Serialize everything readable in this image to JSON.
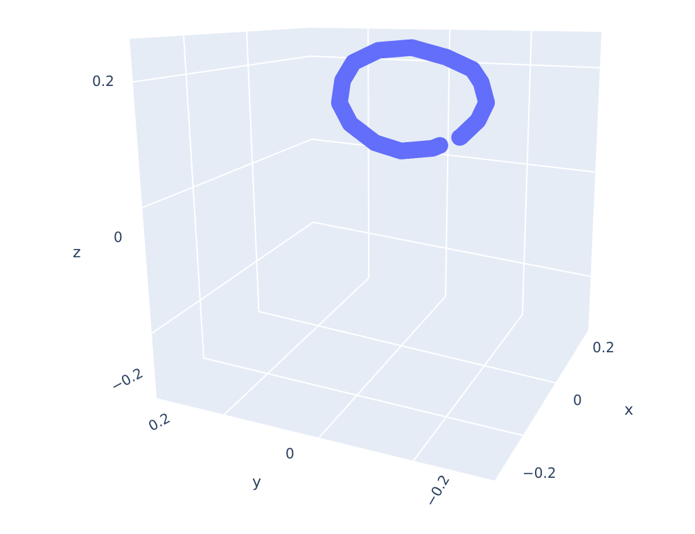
{
  "chart_data": {
    "type": "scatter3d",
    "xlabel": "x",
    "ylabel": "y",
    "zlabel": "z",
    "x_ticks": [
      {
        "label": "0.2"
      },
      {
        "label": "0"
      },
      {
        "label": "−0.2"
      }
    ],
    "y_ticks": [
      {
        "label": "0.2"
      },
      {
        "label": "0"
      },
      {
        "label": "−0.2"
      }
    ],
    "z_ticks": [
      {
        "label": "0.2"
      },
      {
        "label": "0"
      },
      {
        "label": "−0.2"
      }
    ],
    "series": [
      {
        "marker_color": "#636efa",
        "trajectory": [
          [
            0.0,
            -0.02,
            0.26
          ],
          [
            0.04,
            -0.06,
            0.25
          ],
          [
            0.07,
            -0.09,
            0.23
          ],
          [
            0.08,
            -0.1,
            0.2
          ],
          [
            0.09,
            -0.1,
            0.15
          ],
          [
            0.08,
            -0.09,
            0.1
          ],
          [
            0.06,
            -0.07,
            0.05
          ],
          [
            0.02,
            -0.05,
            0.01
          ],
          [
            -0.02,
            -0.02,
            -0.01
          ],
          [
            -0.05,
            0.01,
            0.0
          ],
          [
            -0.09,
            0.02,
            0.04
          ],
          [
            -0.11,
            0.02,
            0.09
          ],
          [
            -0.11,
            0.01,
            0.15
          ],
          [
            -0.09,
            0.01,
            0.2
          ],
          [
            -0.05,
            0.0,
            0.24
          ],
          [
            0.0,
            -0.02,
            0.26
          ]
        ]
      }
    ],
    "background_color": "#e5ecf6",
    "grid_color": "#ffffff"
  }
}
